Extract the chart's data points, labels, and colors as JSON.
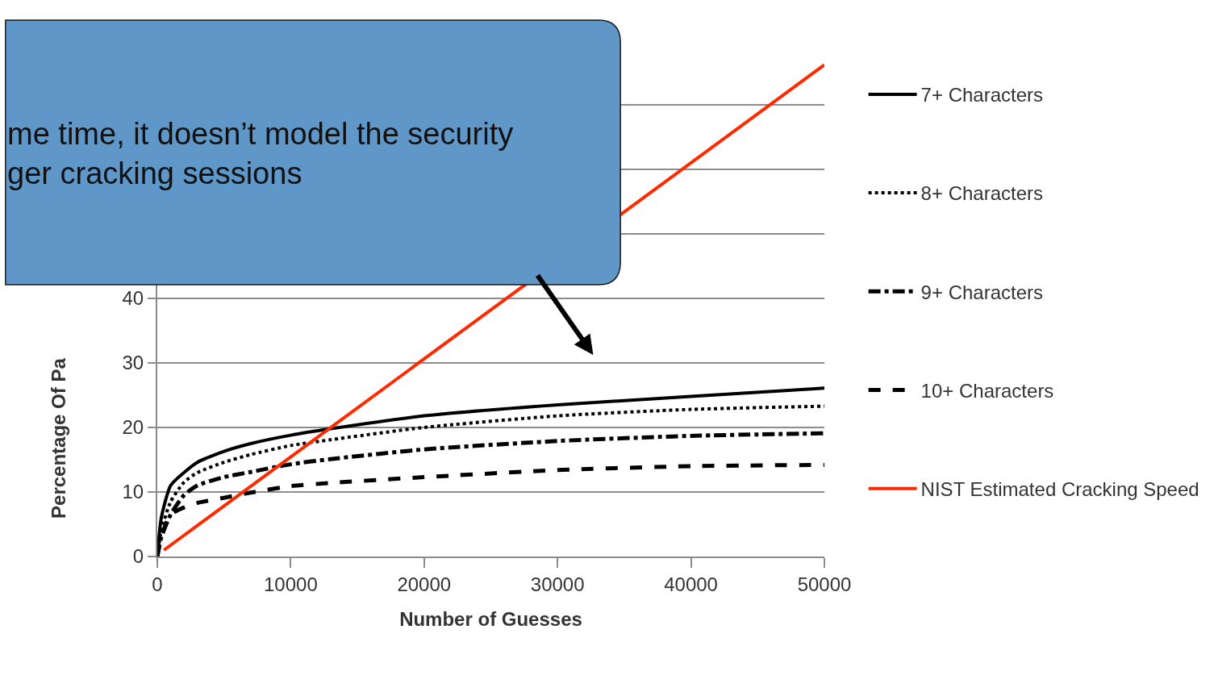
{
  "chart_data": {
    "type": "line",
    "xlabel": "Number of Guesses",
    "ylabel": "Percentage Of Pa",
    "x": [
      0,
      300,
      1000,
      2000,
      3000,
      5000,
      7000,
      10000,
      13000,
      20000,
      30000,
      40000,
      50000
    ],
    "series": [
      {
        "name": "7+ Characters",
        "color": "#000000",
        "line_style": "solid",
        "values": [
          0,
          6,
          11,
          13,
          14.6,
          16.3,
          17.5,
          18.8,
          19.8,
          21.8,
          23.5,
          24.8,
          26.1
        ]
      },
      {
        "name": "8+ Characters",
        "color": "#000000",
        "line_style": "dotted",
        "values": [
          0,
          4,
          8.5,
          11.5,
          13,
          14.6,
          15.8,
          17.2,
          18.1,
          20,
          21.8,
          22.8,
          23.3
        ]
      },
      {
        "name": "9+ Characters",
        "color": "#000000",
        "line_style": "dashdot",
        "values": [
          0,
          3,
          6.5,
          9.5,
          11,
          12.3,
          13.1,
          14.3,
          15.1,
          16.6,
          17.9,
          18.7,
          19.1
        ]
      },
      {
        "name": "10+ Characters",
        "color": "#000000",
        "line_style": "dashed",
        "values": [
          0,
          3,
          6.5,
          7.6,
          8.3,
          9.1,
          9.9,
          10.9,
          11.4,
          12.3,
          13.4,
          14,
          14.2
        ]
      },
      {
        "name": "NIST Estimated Cracking Speed",
        "color": "#ff2a00",
        "line_style": "solid",
        "x": [
          500,
          50000
        ],
        "values": [
          1,
          76.2
        ]
      }
    ],
    "xlim": [
      0,
      50000
    ],
    "xticks": [
      0,
      10000,
      20000,
      30000,
      40000,
      50000
    ],
    "ylim": [
      0,
      80
    ],
    "yticks": [
      0,
      10,
      20,
      30,
      40,
      {
        "value": 50,
        "label": null
      },
      {
        "value": 60,
        "label": null
      },
      {
        "value": 70,
        "label": null
      },
      {
        "value": 80,
        "label": null
      }
    ],
    "grid": "y",
    "legend": "right",
    "marker": "none",
    "annotations": [
      "me time, it doesn’t model the security\nger cracking sessions"
    ]
  }
}
